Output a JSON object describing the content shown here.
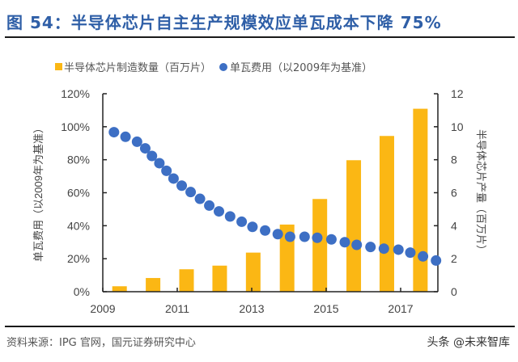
{
  "title": "图 54：半导体芯片自主生产规模效应单瓦成本下降 75%",
  "source": "资料来源：IPG 官网，国元证券研究中心",
  "watermark": "头条 @未来智库",
  "chart_data": {
    "type": "bar+scatter",
    "title": "图 54：半导体芯片自主生产规模效应单瓦成本下降 75%",
    "legend_position": "top",
    "grid": false,
    "colors": {
      "bars": "#fbb714",
      "dots": "#3d6fc4",
      "title": "#2f5fa7"
    },
    "x_axis": {
      "ticks": [
        "2009",
        "2011",
        "2013",
        "2015",
        "2017"
      ],
      "tick_values": [
        2009,
        2011,
        2013,
        2015,
        2017
      ],
      "range": [
        2009,
        2018
      ]
    },
    "y_left": {
      "label": "单瓦费用（以2009年为基准）",
      "range": [
        0,
        120
      ],
      "ticks": [
        "0%",
        "20%",
        "40%",
        "60%",
        "80%",
        "100%",
        "120%"
      ]
    },
    "y_right": {
      "label": "半导体芯片产量（百万片）",
      "range": [
        0,
        12
      ],
      "ticks": [
        "0",
        "2",
        "4",
        "6",
        "8",
        "10",
        "12"
      ]
    },
    "series": [
      {
        "name": "半导体芯片制造数量（百万片）",
        "type": "bar",
        "axis": "right",
        "x": [
          2009.45,
          2010.35,
          2011.25,
          2012.14,
          2013.04,
          2013.95,
          2014.83,
          2015.74,
          2016.63,
          2017.53
        ],
        "values": [
          0.33,
          0.83,
          1.36,
          1.58,
          2.37,
          4.07,
          5.62,
          7.97,
          9.44,
          11.09
        ]
      },
      {
        "name": "单瓦费用（以2009年为基准）",
        "type": "scatter",
        "axis": "left",
        "x": [
          2009.3,
          2009.61,
          2009.92,
          2010.14,
          2010.32,
          2010.52,
          2010.71,
          2010.9,
          2011.12,
          2011.36,
          2011.61,
          2011.86,
          2012.12,
          2012.42,
          2012.73,
          2013.02,
          2013.36,
          2013.7,
          2014.03,
          2014.42,
          2014.76,
          2015.14,
          2015.5,
          2015.82,
          2016.19,
          2016.55,
          2016.94,
          2017.26,
          2017.6,
          2017.95
        ],
        "values": [
          96.7,
          93.9,
          90.9,
          86.9,
          82.3,
          77.9,
          73.3,
          68.6,
          64.3,
          60.4,
          56.3,
          52.2,
          48.7,
          45.6,
          42.4,
          39.3,
          37.1,
          34.9,
          33.3,
          33.3,
          32.7,
          31.7,
          30.0,
          28.4,
          27.1,
          26.1,
          25.5,
          23.7,
          21.4,
          18.9
        ]
      }
    ]
  }
}
